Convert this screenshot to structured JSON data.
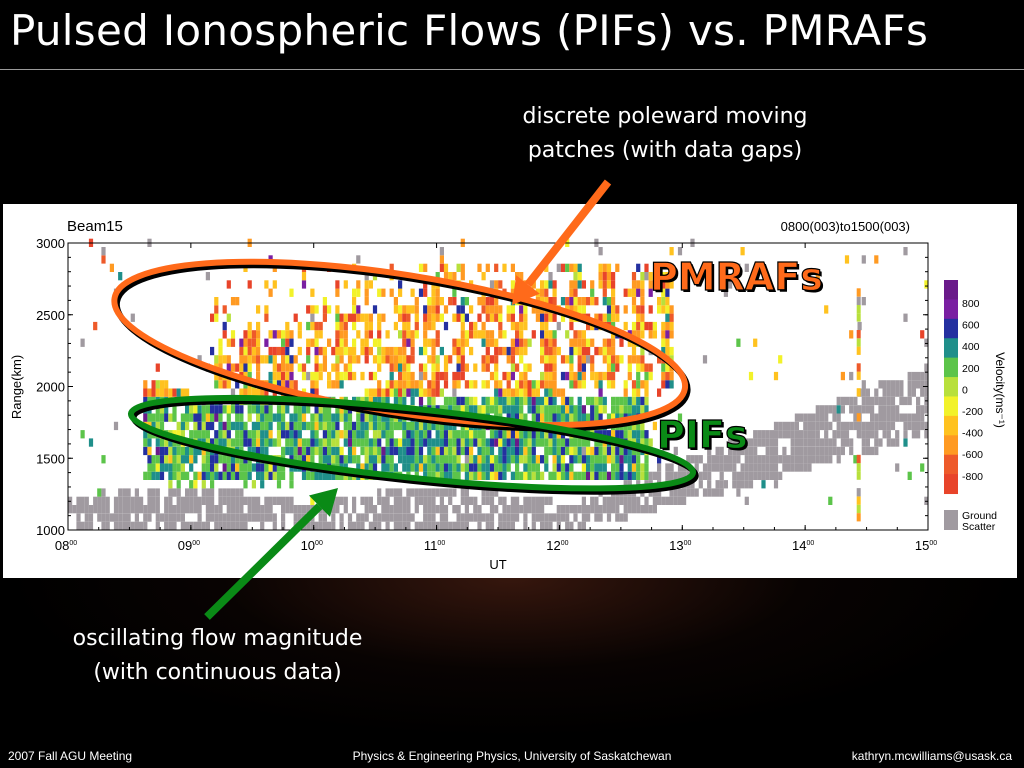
{
  "slide": {
    "title": "Pulsed Ionospheric Flows (PIFs) vs. PMRAFs",
    "annotation_top": [
      "discrete poleward moving",
      "patches (with data gaps)"
    ],
    "annotation_bottom": [
      "oscillating flow magnitude",
      "(with continuous data)"
    ],
    "footer": {
      "left": "2007 Fall AGU Meeting",
      "center": "Physics & Engineering Physics, University of Saskatchewan",
      "right": "kathryn.mcwilliams@usask.ca"
    },
    "colors": {
      "pmrafs_ellipse": "#ff6a1a",
      "pifs_ellipse": "#0a8a16",
      "pmrafs_label": "#ff6a1a",
      "pifs_label": "#0a8a16"
    }
  },
  "chart_data": {
    "type": "heatmap",
    "beam_label": "Beam15",
    "time_range_label": "0800(003)to1500(003)",
    "xlabel": "UT",
    "ylabel": "Range(km)",
    "xlim": [
      8,
      15
    ],
    "ylim": [
      1000,
      3000
    ],
    "x_ticks": [
      {
        "value": 8,
        "hour": "08",
        "min": "00"
      },
      {
        "value": 9,
        "hour": "09",
        "min": "00"
      },
      {
        "value": 10,
        "hour": "10",
        "min": "00"
      },
      {
        "value": 11,
        "hour": "11",
        "min": "00"
      },
      {
        "value": 12,
        "hour": "12",
        "min": "00"
      },
      {
        "value": 13,
        "hour": "13",
        "min": "00"
      },
      {
        "value": 14,
        "hour": "14",
        "min": "00"
      },
      {
        "value": 15,
        "hour": "15",
        "min": "00"
      }
    ],
    "y_ticks": [
      1000,
      1500,
      2000,
      2500,
      3000
    ],
    "colorbar": {
      "label": "Velocity(ms⁻¹)",
      "levels": [
        {
          "label": "800",
          "color": "#7a1fa2"
        },
        {
          "label": "600",
          "color": "#2430a0"
        },
        {
          "label": "400",
          "color": "#1f8f8a"
        },
        {
          "label": "200",
          "color": "#5cc44a"
        },
        {
          "label": "0",
          "color": "#b8e03c"
        },
        {
          "label": "-200",
          "color": "#f2f22a"
        },
        {
          "label": "-400",
          "color": "#ffc21f"
        },
        {
          "label": "-600",
          "color": "#ff9a22"
        },
        {
          "label": "-800",
          "color": "#ee5a2a"
        }
      ],
      "extra_colors": [
        "#6a1a8a",
        "#e8442a"
      ],
      "ground_scatter": {
        "label_lines": [
          "Ground",
          "Scatter"
        ],
        "color": "#a09aa0"
      }
    },
    "regions": [
      {
        "name": "PMRAFs",
        "ut_center": 10.7,
        "range_center": 2300,
        "ut_halfwidth": 2.35,
        "range_halfwidth": 480,
        "rotation_deg": 9
      },
      {
        "name": "PIFs",
        "ut_center": 10.8,
        "range_center": 1605,
        "ut_halfwidth": 2.3,
        "range_halfwidth": 240,
        "rotation_deg": 6
      }
    ]
  }
}
